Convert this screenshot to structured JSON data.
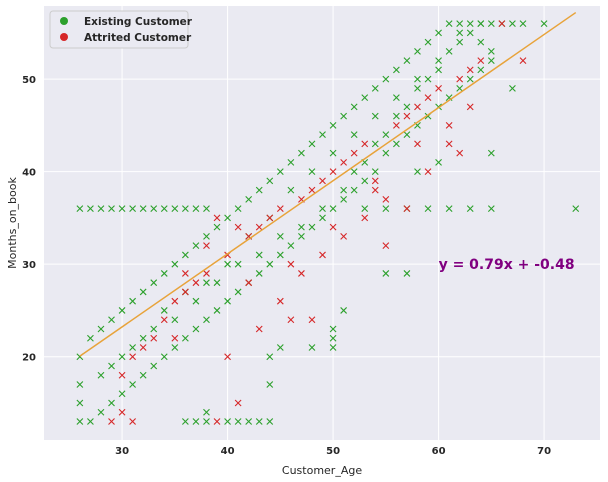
{
  "chart_data": {
    "type": "scatter",
    "xlabel": "Customer_Age",
    "ylabel": "Months_on_book",
    "xlim": [
      22.6,
      75.3
    ],
    "ylim": [
      11,
      57.9
    ],
    "xticks": [
      30,
      40,
      50,
      60,
      70
    ],
    "yticks": [
      20,
      30,
      40,
      50
    ],
    "grid": true,
    "legend_position": "top-left",
    "marker": "x",
    "series": [
      {
        "name": "Existing Customer",
        "color": "#2ca02c",
        "points": [
          [
            26,
            13
          ],
          [
            26,
            20
          ],
          [
            26,
            36
          ],
          [
            27,
            36
          ],
          [
            28,
            36
          ],
          [
            29,
            36
          ],
          [
            30,
            36
          ],
          [
            31,
            36
          ],
          [
            32,
            36
          ],
          [
            33,
            36
          ],
          [
            34,
            36
          ],
          [
            35,
            36
          ],
          [
            36,
            36
          ],
          [
            37,
            36
          ],
          [
            38,
            36
          ],
          [
            30,
            20
          ],
          [
            32,
            22
          ],
          [
            34,
            25
          ],
          [
            36,
            27
          ],
          [
            38,
            28
          ],
          [
            40,
            30
          ],
          [
            42,
            33
          ],
          [
            44,
            35
          ],
          [
            46,
            38
          ],
          [
            48,
            40
          ],
          [
            50,
            42
          ],
          [
            52,
            44
          ],
          [
            54,
            46
          ],
          [
            56,
            48
          ],
          [
            58,
            50
          ],
          [
            60,
            52
          ],
          [
            62,
            54
          ],
          [
            64,
            56
          ],
          [
            27,
            22
          ],
          [
            28,
            23
          ],
          [
            29,
            24
          ],
          [
            30,
            25
          ],
          [
            31,
            26
          ],
          [
            32,
            27
          ],
          [
            33,
            28
          ],
          [
            34,
            29
          ],
          [
            35,
            30
          ],
          [
            36,
            31
          ],
          [
            37,
            32
          ],
          [
            38,
            33
          ],
          [
            39,
            34
          ],
          [
            40,
            35
          ],
          [
            41,
            36
          ],
          [
            42,
            37
          ],
          [
            43,
            38
          ],
          [
            44,
            39
          ],
          [
            45,
            40
          ],
          [
            46,
            41
          ],
          [
            47,
            42
          ],
          [
            48,
            43
          ],
          [
            49,
            44
          ],
          [
            50,
            45
          ],
          [
            51,
            46
          ],
          [
            52,
            47
          ],
          [
            53,
            48
          ],
          [
            54,
            49
          ],
          [
            55,
            50
          ],
          [
            56,
            51
          ],
          [
            57,
            52
          ],
          [
            58,
            53
          ],
          [
            59,
            54
          ],
          [
            60,
            55
          ],
          [
            61,
            56
          ],
          [
            62,
            56
          ],
          [
            63,
            56
          ],
          [
            64,
            56
          ],
          [
            65,
            56
          ],
          [
            66,
            56
          ],
          [
            67,
            56
          ],
          [
            68,
            56
          ],
          [
            70,
            56
          ],
          [
            73,
            36
          ],
          [
            67,
            49
          ],
          [
            65,
            42
          ],
          [
            60,
            41
          ],
          [
            58,
            40
          ],
          [
            55,
            29
          ],
          [
            57,
            29
          ],
          [
            50,
            23
          ],
          [
            50,
            22
          ],
          [
            50,
            21
          ],
          [
            45,
            21
          ],
          [
            48,
            21
          ],
          [
            44,
            17
          ],
          [
            44,
            20
          ],
          [
            42,
            13
          ],
          [
            43,
            13
          ],
          [
            44,
            13
          ],
          [
            40,
            13
          ],
          [
            41,
            13
          ],
          [
            38,
            14
          ],
          [
            38,
            13
          ],
          [
            36,
            13
          ],
          [
            37,
            13
          ],
          [
            51,
            25
          ],
          [
            52,
            38
          ],
          [
            53,
            39
          ],
          [
            54,
            40
          ],
          [
            55,
            42
          ],
          [
            56,
            43
          ],
          [
            57,
            44
          ],
          [
            58,
            45
          ],
          [
            59,
            46
          ],
          [
            60,
            47
          ],
          [
            61,
            48
          ],
          [
            62,
            49
          ],
          [
            63,
            50
          ],
          [
            64,
            51
          ],
          [
            65,
            52
          ],
          [
            28,
            18
          ],
          [
            29,
            19
          ],
          [
            31,
            21
          ],
          [
            33,
            23
          ],
          [
            35,
            24
          ],
          [
            37,
            26
          ],
          [
            39,
            28
          ],
          [
            41,
            30
          ],
          [
            43,
            31
          ],
          [
            45,
            33
          ],
          [
            47,
            34
          ],
          [
            49,
            36
          ],
          [
            51,
            37
          ],
          [
            53,
            36
          ],
          [
            55,
            36
          ],
          [
            57,
            36
          ],
          [
            59,
            36
          ],
          [
            61,
            36
          ],
          [
            63,
            36
          ],
          [
            65,
            36
          ],
          [
            26,
            15
          ],
          [
            26,
            17
          ],
          [
            27,
            13
          ],
          [
            28,
            14
          ],
          [
            29,
            15
          ],
          [
            30,
            16
          ],
          [
            31,
            17
          ],
          [
            32,
            18
          ],
          [
            33,
            19
          ],
          [
            34,
            20
          ],
          [
            35,
            21
          ],
          [
            36,
            22
          ],
          [
            37,
            23
          ],
          [
            38,
            24
          ],
          [
            39,
            25
          ],
          [
            40,
            26
          ],
          [
            41,
            27
          ],
          [
            42,
            28
          ],
          [
            43,
            29
          ],
          [
            44,
            30
          ],
          [
            45,
            31
          ],
          [
            46,
            32
          ],
          [
            47,
            33
          ],
          [
            48,
            34
          ],
          [
            49,
            35
          ],
          [
            50,
            36
          ],
          [
            51,
            38
          ],
          [
            52,
            40
          ],
          [
            53,
            41
          ],
          [
            54,
            43
          ],
          [
            55,
            44
          ],
          [
            56,
            46
          ],
          [
            57,
            47
          ],
          [
            58,
            49
          ],
          [
            59,
            50
          ],
          [
            60,
            51
          ],
          [
            61,
            53
          ],
          [
            62,
            55
          ],
          [
            63,
            55
          ],
          [
            64,
            54
          ],
          [
            65,
            53
          ]
        ]
      },
      {
        "name": "Attrited Customer",
        "color": "#d62728",
        "points": [
          [
            30,
            18
          ],
          [
            31,
            20
          ],
          [
            32,
            21
          ],
          [
            33,
            22
          ],
          [
            34,
            24
          ],
          [
            35,
            26
          ],
          [
            36,
            27
          ],
          [
            37,
            28
          ],
          [
            38,
            29
          ],
          [
            39,
            13
          ],
          [
            40,
            31
          ],
          [
            41,
            15
          ],
          [
            42,
            33
          ],
          [
            43,
            34
          ],
          [
            44,
            35
          ],
          [
            45,
            36
          ],
          [
            46,
            24
          ],
          [
            48,
            24
          ],
          [
            47,
            37
          ],
          [
            48,
            38
          ],
          [
            49,
            39
          ],
          [
            50,
            40
          ],
          [
            51,
            41
          ],
          [
            52,
            42
          ],
          [
            53,
            43
          ],
          [
            54,
            38
          ],
          [
            55,
            32
          ],
          [
            56,
            45
          ],
          [
            57,
            46
          ],
          [
            58,
            47
          ],
          [
            59,
            48
          ],
          [
            60,
            49
          ],
          [
            61,
            43
          ],
          [
            62,
            42
          ],
          [
            63,
            51
          ],
          [
            64,
            52
          ],
          [
            66,
            56
          ],
          [
            68,
            52
          ],
          [
            30,
            14
          ],
          [
            29,
            13
          ],
          [
            31,
            13
          ],
          [
            35,
            22
          ],
          [
            36,
            29
          ],
          [
            38,
            32
          ],
          [
            40,
            20
          ],
          [
            41,
            34
          ],
          [
            43,
            23
          ],
          [
            45,
            26
          ],
          [
            47,
            29
          ],
          [
            49,
            31
          ],
          [
            51,
            33
          ],
          [
            53,
            35
          ],
          [
            55,
            37
          ],
          [
            57,
            36
          ],
          [
            59,
            40
          ],
          [
            61,
            45
          ],
          [
            63,
            47
          ],
          [
            39,
            35
          ],
          [
            42,
            28
          ],
          [
            46,
            30
          ],
          [
            50,
            34
          ],
          [
            54,
            39
          ],
          [
            58,
            43
          ],
          [
            62,
            50
          ]
        ]
      }
    ],
    "fit_line": {
      "slope": 0.79,
      "intercept": -0.48,
      "x_range": [
        26,
        73
      ],
      "color": "#e8a33a",
      "label": "y = 0.79x + -0.48",
      "label_position": [
        60,
        30
      ],
      "label_color": "#800080"
    }
  }
}
